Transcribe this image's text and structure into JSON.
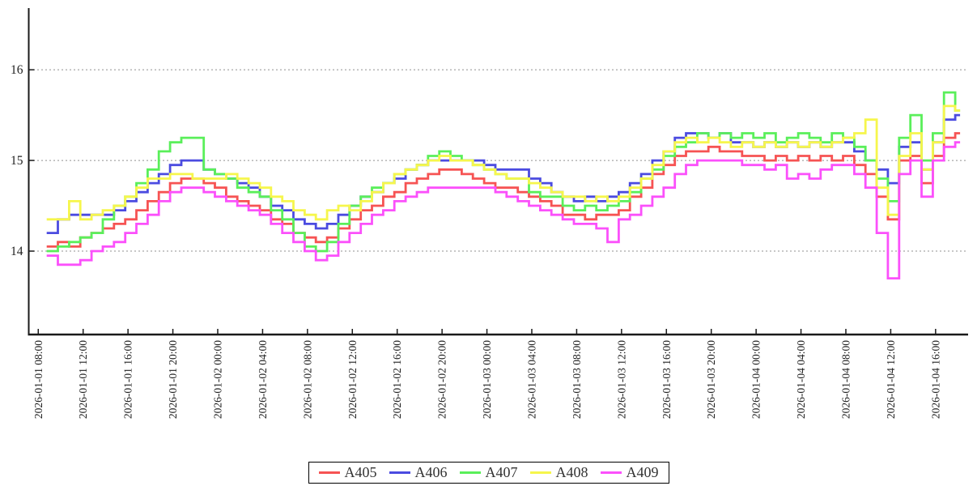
{
  "chart_data": {
    "type": "line",
    "step_mode": "post",
    "title": "",
    "xlabel": "",
    "ylabel": "",
    "grid": "horizontal-dashed",
    "legend_position": "bottom-center",
    "axis_color": "#1a1a1a",
    "grid_color": "#909090",
    "tick_label_color": "#222222",
    "y_ticks": [
      16,
      15,
      14
    ],
    "ylim": [
      13.08,
      16.68
    ],
    "xlim_hours": [
      -0.85,
      82.9
    ],
    "x_tick_interval_hours": 4,
    "x_ticks": [
      "2026-01-01 08:00",
      "2026-01-01 12:00",
      "2026-01-01 16:00",
      "2026-01-01 20:00",
      "2026-01-02 00:00",
      "2026-01-02 04:00",
      "2026-01-02 08:00",
      "2026-01-02 12:00",
      "2026-01-02 16:00",
      "2026-01-02 20:00",
      "2026-01-03 00:00",
      "2026-01-03 04:00",
      "2026-01-03 08:00",
      "2026-01-03 12:00",
      "2026-01-03 16:00",
      "2026-01-03 20:00",
      "2026-01-04 00:00",
      "2026-01-04 04:00",
      "2026-01-04 08:00",
      "2026-01-04 12:00",
      "2026-01-04 16:00"
    ],
    "sample_start": "2026-01-01 08:45",
    "sample_interval_hours": 1,
    "series": [
      {
        "name": "A405",
        "color": "#f65353",
        "values": [
          14.05,
          14.1,
          14.05,
          14.15,
          14.2,
          14.25,
          14.3,
          14.35,
          14.45,
          14.55,
          14.65,
          14.75,
          14.8,
          14.8,
          14.75,
          14.7,
          14.6,
          14.55,
          14.5,
          14.45,
          14.35,
          14.3,
          14.2,
          14.15,
          14.1,
          14.15,
          14.25,
          14.35,
          14.45,
          14.5,
          14.6,
          14.65,
          14.75,
          14.8,
          14.85,
          14.9,
          14.9,
          14.85,
          14.8,
          14.75,
          14.7,
          14.7,
          14.65,
          14.6,
          14.55,
          14.5,
          14.4,
          14.4,
          14.35,
          14.4,
          14.4,
          14.45,
          14.6,
          14.7,
          14.85,
          14.95,
          15.05,
          15.1,
          15.1,
          15.15,
          15.1,
          15.1,
          15.05,
          15.05,
          15.0,
          15.05,
          15.0,
          15.05,
          15.0,
          15.05,
          15.0,
          15.05,
          14.95,
          14.85,
          14.6,
          14.35,
          15.0,
          15.05,
          14.75,
          15.05,
          15.25,
          15.3
        ]
      },
      {
        "name": "A406",
        "color": "#4b4be0",
        "values": [
          14.2,
          14.35,
          14.4,
          14.4,
          14.4,
          14.4,
          14.45,
          14.55,
          14.65,
          14.75,
          14.85,
          14.95,
          15.0,
          15.0,
          14.9,
          14.85,
          14.8,
          14.75,
          14.7,
          14.6,
          14.5,
          14.45,
          14.35,
          14.3,
          14.25,
          14.3,
          14.4,
          14.5,
          14.6,
          14.65,
          14.75,
          14.8,
          14.9,
          14.95,
          15.0,
          15.0,
          15.0,
          15.0,
          15.0,
          14.95,
          14.9,
          14.9,
          14.9,
          14.8,
          14.75,
          14.65,
          14.6,
          14.55,
          14.6,
          14.55,
          14.6,
          14.65,
          14.75,
          14.85,
          15.0,
          15.1,
          15.25,
          15.3,
          15.3,
          15.25,
          15.3,
          15.2,
          15.2,
          15.15,
          15.2,
          15.15,
          15.2,
          15.15,
          15.2,
          15.15,
          15.2,
          15.2,
          15.1,
          15.0,
          14.9,
          14.75,
          15.15,
          15.2,
          14.9,
          15.2,
          15.45,
          15.5
        ]
      },
      {
        "name": "A407",
        "color": "#5aef5a",
        "values": [
          14.0,
          14.05,
          14.1,
          14.15,
          14.2,
          14.35,
          14.5,
          14.6,
          14.75,
          14.9,
          15.1,
          15.2,
          15.25,
          15.25,
          14.9,
          14.85,
          14.8,
          14.7,
          14.65,
          14.6,
          14.45,
          14.35,
          14.2,
          14.05,
          14.0,
          14.1,
          14.3,
          14.5,
          14.6,
          14.7,
          14.75,
          14.85,
          14.9,
          14.95,
          15.05,
          15.1,
          15.05,
          15.0,
          14.95,
          14.9,
          14.85,
          14.8,
          14.8,
          14.65,
          14.6,
          14.6,
          14.5,
          14.45,
          14.5,
          14.45,
          14.5,
          14.55,
          14.65,
          14.8,
          14.9,
          15.05,
          15.15,
          15.2,
          15.3,
          15.25,
          15.3,
          15.25,
          15.3,
          15.25,
          15.3,
          15.2,
          15.25,
          15.3,
          15.25,
          15.2,
          15.3,
          15.25,
          15.15,
          15.0,
          14.8,
          14.55,
          15.25,
          15.5,
          15.0,
          15.3,
          15.75,
          15.55
        ]
      },
      {
        "name": "A408",
        "color": "#f6f64c",
        "values": [
          14.35,
          14.35,
          14.55,
          14.35,
          14.4,
          14.45,
          14.5,
          14.6,
          14.7,
          14.8,
          14.8,
          14.85,
          14.85,
          14.8,
          14.8,
          14.8,
          14.85,
          14.8,
          14.75,
          14.7,
          14.6,
          14.55,
          14.45,
          14.4,
          14.35,
          14.45,
          14.5,
          14.45,
          14.55,
          14.65,
          14.75,
          14.85,
          14.9,
          14.95,
          15.0,
          15.05,
          15.0,
          15.0,
          14.95,
          14.9,
          14.85,
          14.8,
          14.8,
          14.75,
          14.7,
          14.65,
          14.6,
          14.6,
          14.55,
          14.6,
          14.55,
          14.6,
          14.7,
          14.8,
          14.95,
          15.1,
          15.2,
          15.25,
          15.2,
          15.25,
          15.2,
          15.15,
          15.2,
          15.15,
          15.2,
          15.15,
          15.2,
          15.15,
          15.2,
          15.15,
          15.2,
          15.25,
          15.3,
          15.45,
          14.7,
          14.4,
          15.05,
          15.3,
          14.9,
          15.2,
          15.6,
          15.55
        ]
      },
      {
        "name": "A409",
        "color": "#fb50fb",
        "values": [
          13.95,
          13.85,
          13.85,
          13.9,
          14.0,
          14.05,
          14.1,
          14.2,
          14.3,
          14.4,
          14.55,
          14.65,
          14.7,
          14.7,
          14.65,
          14.6,
          14.55,
          14.5,
          14.45,
          14.4,
          14.3,
          14.2,
          14.1,
          14.0,
          13.9,
          13.95,
          14.1,
          14.2,
          14.3,
          14.4,
          14.45,
          14.55,
          14.6,
          14.65,
          14.7,
          14.7,
          14.7,
          14.7,
          14.7,
          14.7,
          14.65,
          14.6,
          14.55,
          14.5,
          14.45,
          14.4,
          14.35,
          14.3,
          14.3,
          14.25,
          14.1,
          14.35,
          14.4,
          14.5,
          14.6,
          14.7,
          14.85,
          14.95,
          15.0,
          15.0,
          15.0,
          15.0,
          14.95,
          14.95,
          14.9,
          14.95,
          14.8,
          14.85,
          14.8,
          14.9,
          14.95,
          14.95,
          14.85,
          14.7,
          14.2,
          13.7,
          14.85,
          15.0,
          14.6,
          15.0,
          15.15,
          15.2
        ]
      }
    ]
  }
}
